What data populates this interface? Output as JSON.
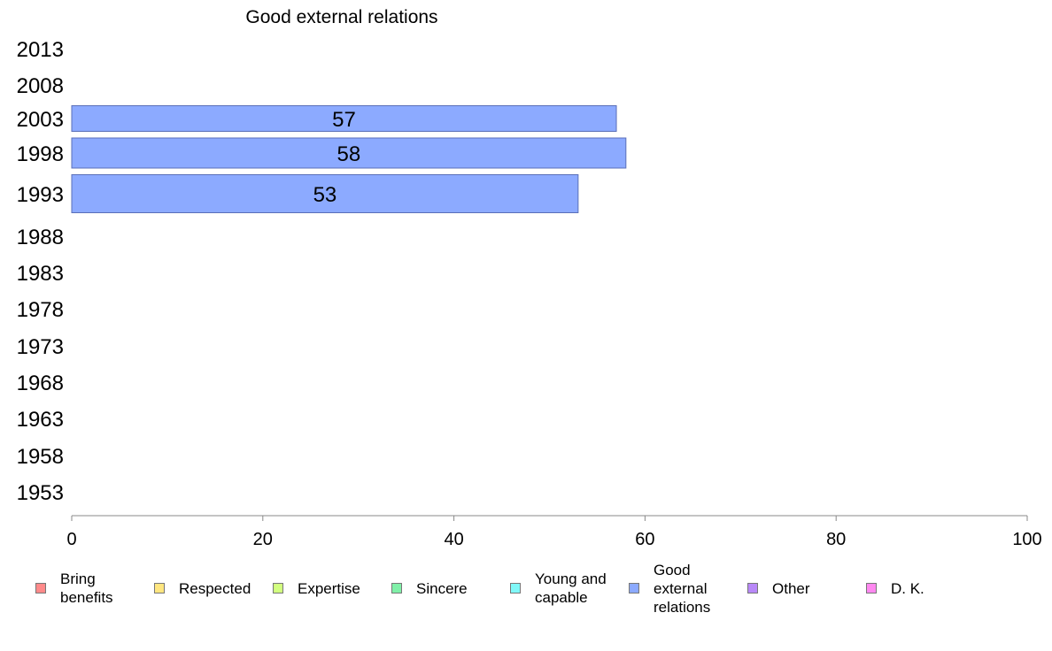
{
  "chart_data": {
    "type": "bar",
    "orientation": "horizontal",
    "title": "Good external relations",
    "categories": [
      "2013",
      "2008",
      "2003",
      "1998",
      "1993",
      "1988",
      "1983",
      "1978",
      "1973",
      "1968",
      "1963",
      "1958",
      "1953"
    ],
    "series": [
      {
        "name": "Good external relations",
        "color": "#8caaff",
        "values": [
          null,
          null,
          57,
          58,
          53,
          null,
          null,
          null,
          null,
          null,
          null,
          null,
          null
        ]
      }
    ],
    "xlim": [
      0,
      100
    ],
    "xticks": [
      "0",
      "20",
      "40",
      "60",
      "80",
      "100"
    ],
    "grid": false,
    "legend_position": "bottom",
    "legend": [
      {
        "label": "Bring\nbenefits",
        "color": "#ff8a8a"
      },
      {
        "label": "Respected",
        "color": "#ffe680"
      },
      {
        "label": "Expertise",
        "color": "#d2ff80"
      },
      {
        "label": "Sincere",
        "color": "#80f0a8"
      },
      {
        "label": "Young and\ncapable",
        "color": "#80f8f8"
      },
      {
        "label": "Good\nexternal\nrelations",
        "color": "#8caaff"
      },
      {
        "label": "Other",
        "color": "#b888f8"
      },
      {
        "label": "D. K.",
        "color": "#ff88f0"
      }
    ]
  }
}
